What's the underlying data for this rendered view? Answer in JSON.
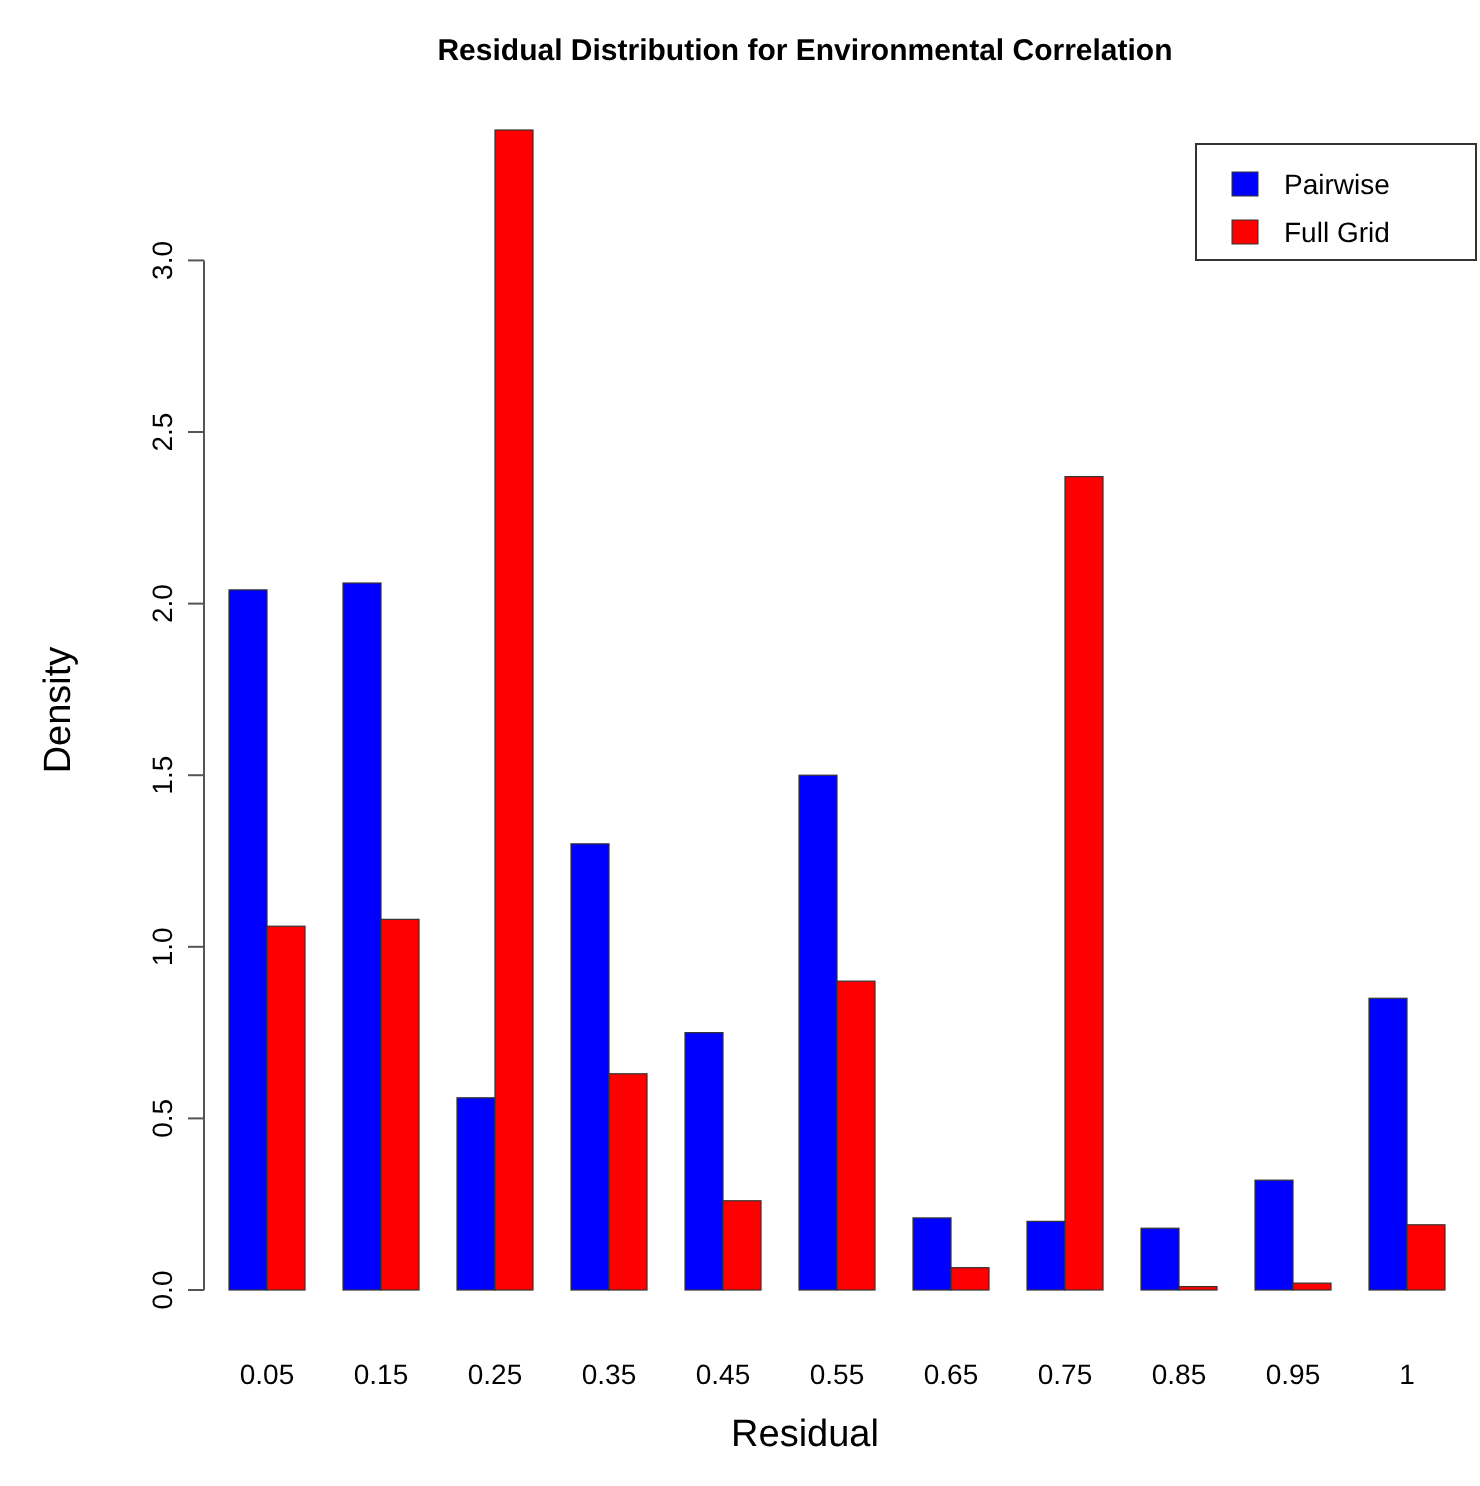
{
  "chart_data": {
    "type": "bar",
    "title": "Residual Distribution for Environmental Correlation",
    "xlabel": "Residual",
    "ylabel": "Density",
    "categories": [
      "0.05",
      "0.15",
      "0.25",
      "0.35",
      "0.45",
      "0.55",
      "0.65",
      "0.75",
      "0.85",
      "0.95",
      "1"
    ],
    "series": [
      {
        "name": "Pairwise",
        "color": "#0000ff",
        "values": [
          2.04,
          2.06,
          0.56,
          1.3,
          0.75,
          1.5,
          0.21,
          0.2,
          0.18,
          0.32,
          0.85
        ]
      },
      {
        "name": "Full Grid",
        "color": "#ff0000",
        "values": [
          1.06,
          1.08,
          3.38,
          0.63,
          0.26,
          0.9,
          0.065,
          2.37,
          0.01,
          0.02,
          0.19
        ]
      }
    ],
    "ylim": [
      0,
      3.38
    ],
    "yticks": [
      {
        "value": 0,
        "label": "0.0"
      },
      {
        "value": 0.5,
        "label": "0.5"
      },
      {
        "value": 1,
        "label": "1.0"
      },
      {
        "value": 1.5,
        "label": "1.5"
      },
      {
        "value": 2,
        "label": "2.0"
      },
      {
        "value": 2.5,
        "label": "2.5"
      },
      {
        "value": 3,
        "label": "3.0"
      }
    ],
    "legend": "top right",
    "grid": false
  }
}
